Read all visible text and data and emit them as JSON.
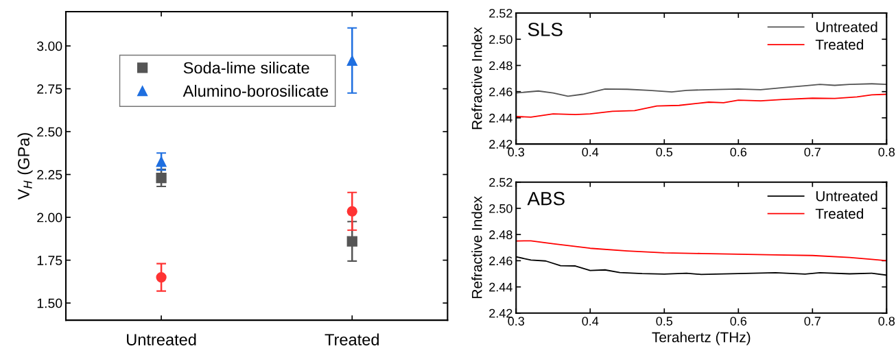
{
  "chart_data": [
    {
      "type": "scatter",
      "ylabel": "V$_{H}$ (GPa)",
      "categories": [
        "Untreated",
        "Treated"
      ],
      "ylim": [
        1.4,
        3.2
      ],
      "yticks": [
        {
          "value": 1.5,
          "label": "1.50"
        },
        1.75,
        {
          "value": 2.0,
          "label": "2.00"
        },
        2.25,
        {
          "value": 2.5,
          "label": "2.50"
        },
        2.75,
        {
          "value": 3.0,
          "label": "3.00"
        }
      ],
      "legend": "top left",
      "grid": false,
      "series": [
        {
          "name": "Soda-lime silicate",
          "color": "#555555",
          "marker": "square",
          "values": [
            2.23,
            1.86
          ],
          "errors": [
            0.05,
            0.115
          ]
        },
        {
          "color": "#ff3333",
          "marker": "circle",
          "values": [
            1.65,
            2.035
          ],
          "errors": [
            0.08,
            0.11
          ]
        },
        {
          "name": "Alumino-borosilicate",
          "color": "#1f6fe0",
          "marker": "triangle",
          "values": [
            2.325,
            2.915
          ],
          "errors": [
            0.05,
            0.19
          ]
        }
      ]
    },
    {
      "type": "line",
      "ylabel": "Refractive Index",
      "annotations": [
        "SLS"
      ],
      "xlim": [
        0.3,
        0.8
      ],
      "xticks": [
        0.3,
        0.4,
        0.5,
        0.6,
        0.7,
        0.8
      ],
      "ylim": [
        2.42,
        2.52
      ],
      "yticks": [
        2.42,
        2.44,
        2.46,
        2.48,
        {
          "value": 2.5,
          "label": "2.50"
        },
        2.52
      ],
      "legend": "top right",
      "grid": false,
      "series": [
        {
          "name": "Untreated",
          "color": "#555555",
          "x": [
            0.3,
            0.33,
            0.35,
            0.37,
            0.39,
            0.42,
            0.45,
            0.48,
            0.51,
            0.53,
            0.56,
            0.6,
            0.63,
            0.66,
            0.69,
            0.71,
            0.73,
            0.75,
            0.78,
            0.8
          ],
          "values": [
            2.459,
            2.4605,
            2.459,
            2.4565,
            2.458,
            2.462,
            2.4618,
            2.461,
            2.4598,
            2.461,
            2.4615,
            2.462,
            2.4615,
            2.463,
            2.4645,
            2.4655,
            2.4648,
            2.4655,
            2.466,
            2.4655
          ]
        },
        {
          "name": "Treated",
          "color": "#ff0000",
          "x": [
            0.3,
            0.32,
            0.35,
            0.38,
            0.4,
            0.43,
            0.46,
            0.49,
            0.52,
            0.56,
            0.58,
            0.6,
            0.63,
            0.66,
            0.7,
            0.73,
            0.76,
            0.78,
            0.8
          ],
          "values": [
            2.441,
            2.4405,
            2.443,
            2.4425,
            2.443,
            2.445,
            2.4455,
            2.449,
            2.4495,
            2.452,
            2.4515,
            2.4535,
            2.453,
            2.454,
            2.455,
            2.4548,
            2.456,
            2.4575,
            2.458
          ]
        }
      ]
    },
    {
      "type": "line",
      "ylabel": "Refractive Index",
      "xlabel": "Terahertz (THz)",
      "annotations": [
        "ABS"
      ],
      "xlim": [
        0.3,
        0.8
      ],
      "xticks": [
        0.3,
        0.4,
        0.5,
        0.6,
        0.7,
        0.8
      ],
      "ylim": [
        2.42,
        2.52
      ],
      "yticks": [
        2.42,
        2.44,
        2.46,
        2.48,
        {
          "value": 2.5,
          "label": "2.50"
        },
        2.52
      ],
      "legend": "top right",
      "grid": false,
      "series": [
        {
          "name": "Untreated",
          "color": "#000000",
          "x": [
            0.3,
            0.32,
            0.34,
            0.36,
            0.38,
            0.4,
            0.42,
            0.44,
            0.47,
            0.5,
            0.53,
            0.55,
            0.6,
            0.65,
            0.69,
            0.71,
            0.75,
            0.78,
            0.8
          ],
          "values": [
            2.463,
            2.4605,
            2.4598,
            2.4562,
            2.456,
            2.4525,
            2.453,
            2.451,
            2.4502,
            2.4498,
            2.4505,
            2.4495,
            2.4502,
            2.4508,
            2.4498,
            2.4508,
            2.45,
            2.4505,
            2.449
          ]
        },
        {
          "name": "Treated",
          "color": "#ff0000",
          "x": [
            0.3,
            0.32,
            0.35,
            0.4,
            0.45,
            0.5,
            0.55,
            0.6,
            0.65,
            0.7,
            0.75,
            0.78,
            0.8
          ],
          "values": [
            2.4751,
            2.4752,
            2.473,
            2.4695,
            2.4675,
            2.466,
            2.4655,
            2.465,
            2.4645,
            2.464,
            2.4625,
            2.461,
            2.46
          ]
        }
      ]
    }
  ]
}
